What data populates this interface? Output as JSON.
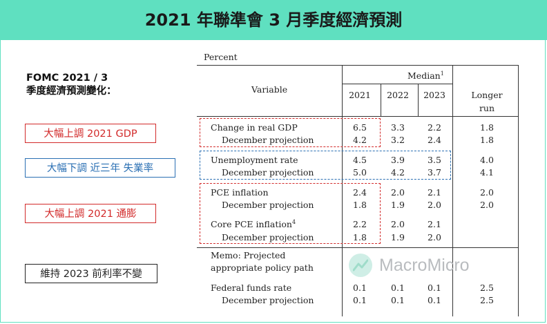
{
  "header": {
    "title": "2021 年聯準會 3 月季度經濟預測"
  },
  "side": {
    "title_line1": "FOMC 2021 / 3",
    "title_line2": "季度經濟預測變化：",
    "tags": [
      {
        "label": "大幅上調 2021 GDP",
        "color": "#d22a2a"
      },
      {
        "label": "大幅下調 近三年 失業率",
        "color": "#2a6fb3"
      },
      {
        "label": "大幅上調 2021 通膨",
        "color": "#d22a2a"
      },
      {
        "label": "維持 2023 前利率不變",
        "color": "#222222"
      }
    ]
  },
  "table": {
    "unit": "Percent",
    "variable_header": "Variable",
    "median_header": "Median",
    "median_sup": "1",
    "columns": [
      "2021",
      "2022",
      "2023"
    ],
    "longer_run_1": "Longer",
    "longer_run_2": "run",
    "rows": [
      {
        "label": "Change in real GDP",
        "sup": "",
        "values": [
          "6.5",
          "3.3",
          "2.2",
          "1.8"
        ]
      },
      {
        "label": "December projection",
        "sup": "",
        "values": [
          "4.2",
          "3.2",
          "2.4",
          "1.8"
        ]
      },
      {
        "label": "Unemployment rate",
        "sup": "",
        "values": [
          "4.5",
          "3.9",
          "3.5",
          "4.0"
        ]
      },
      {
        "label": "December projection",
        "sup": "",
        "values": [
          "5.0",
          "4.2",
          "3.7",
          "4.1"
        ]
      },
      {
        "label": "PCE inflation",
        "sup": "",
        "values": [
          "2.4",
          "2.0",
          "2.1",
          "2.0"
        ]
      },
      {
        "label": "December projection",
        "sup": "",
        "values": [
          "1.8",
          "1.9",
          "2.0",
          "2.0"
        ]
      },
      {
        "label": "Core PCE inflation",
        "sup": "4",
        "values": [
          "2.2",
          "2.0",
          "2.1",
          ""
        ]
      },
      {
        "label": "December projection",
        "sup": "",
        "values": [
          "1.8",
          "1.9",
          "2.0",
          ""
        ]
      },
      {
        "label": "Federal funds rate",
        "sup": "",
        "values": [
          "0.1",
          "0.1",
          "0.1",
          "2.5"
        ]
      },
      {
        "label": "December projection",
        "sup": "",
        "values": [
          "0.1",
          "0.1",
          "0.1",
          "2.5"
        ]
      }
    ],
    "memo_1": "Memo: Projected",
    "memo_2": "appropriate policy path"
  },
  "watermark": {
    "text": "MacroMicro"
  },
  "colors": {
    "header_bg": "#5fe0c0",
    "red": "#d22a2a",
    "blue": "#2a6fb3"
  }
}
